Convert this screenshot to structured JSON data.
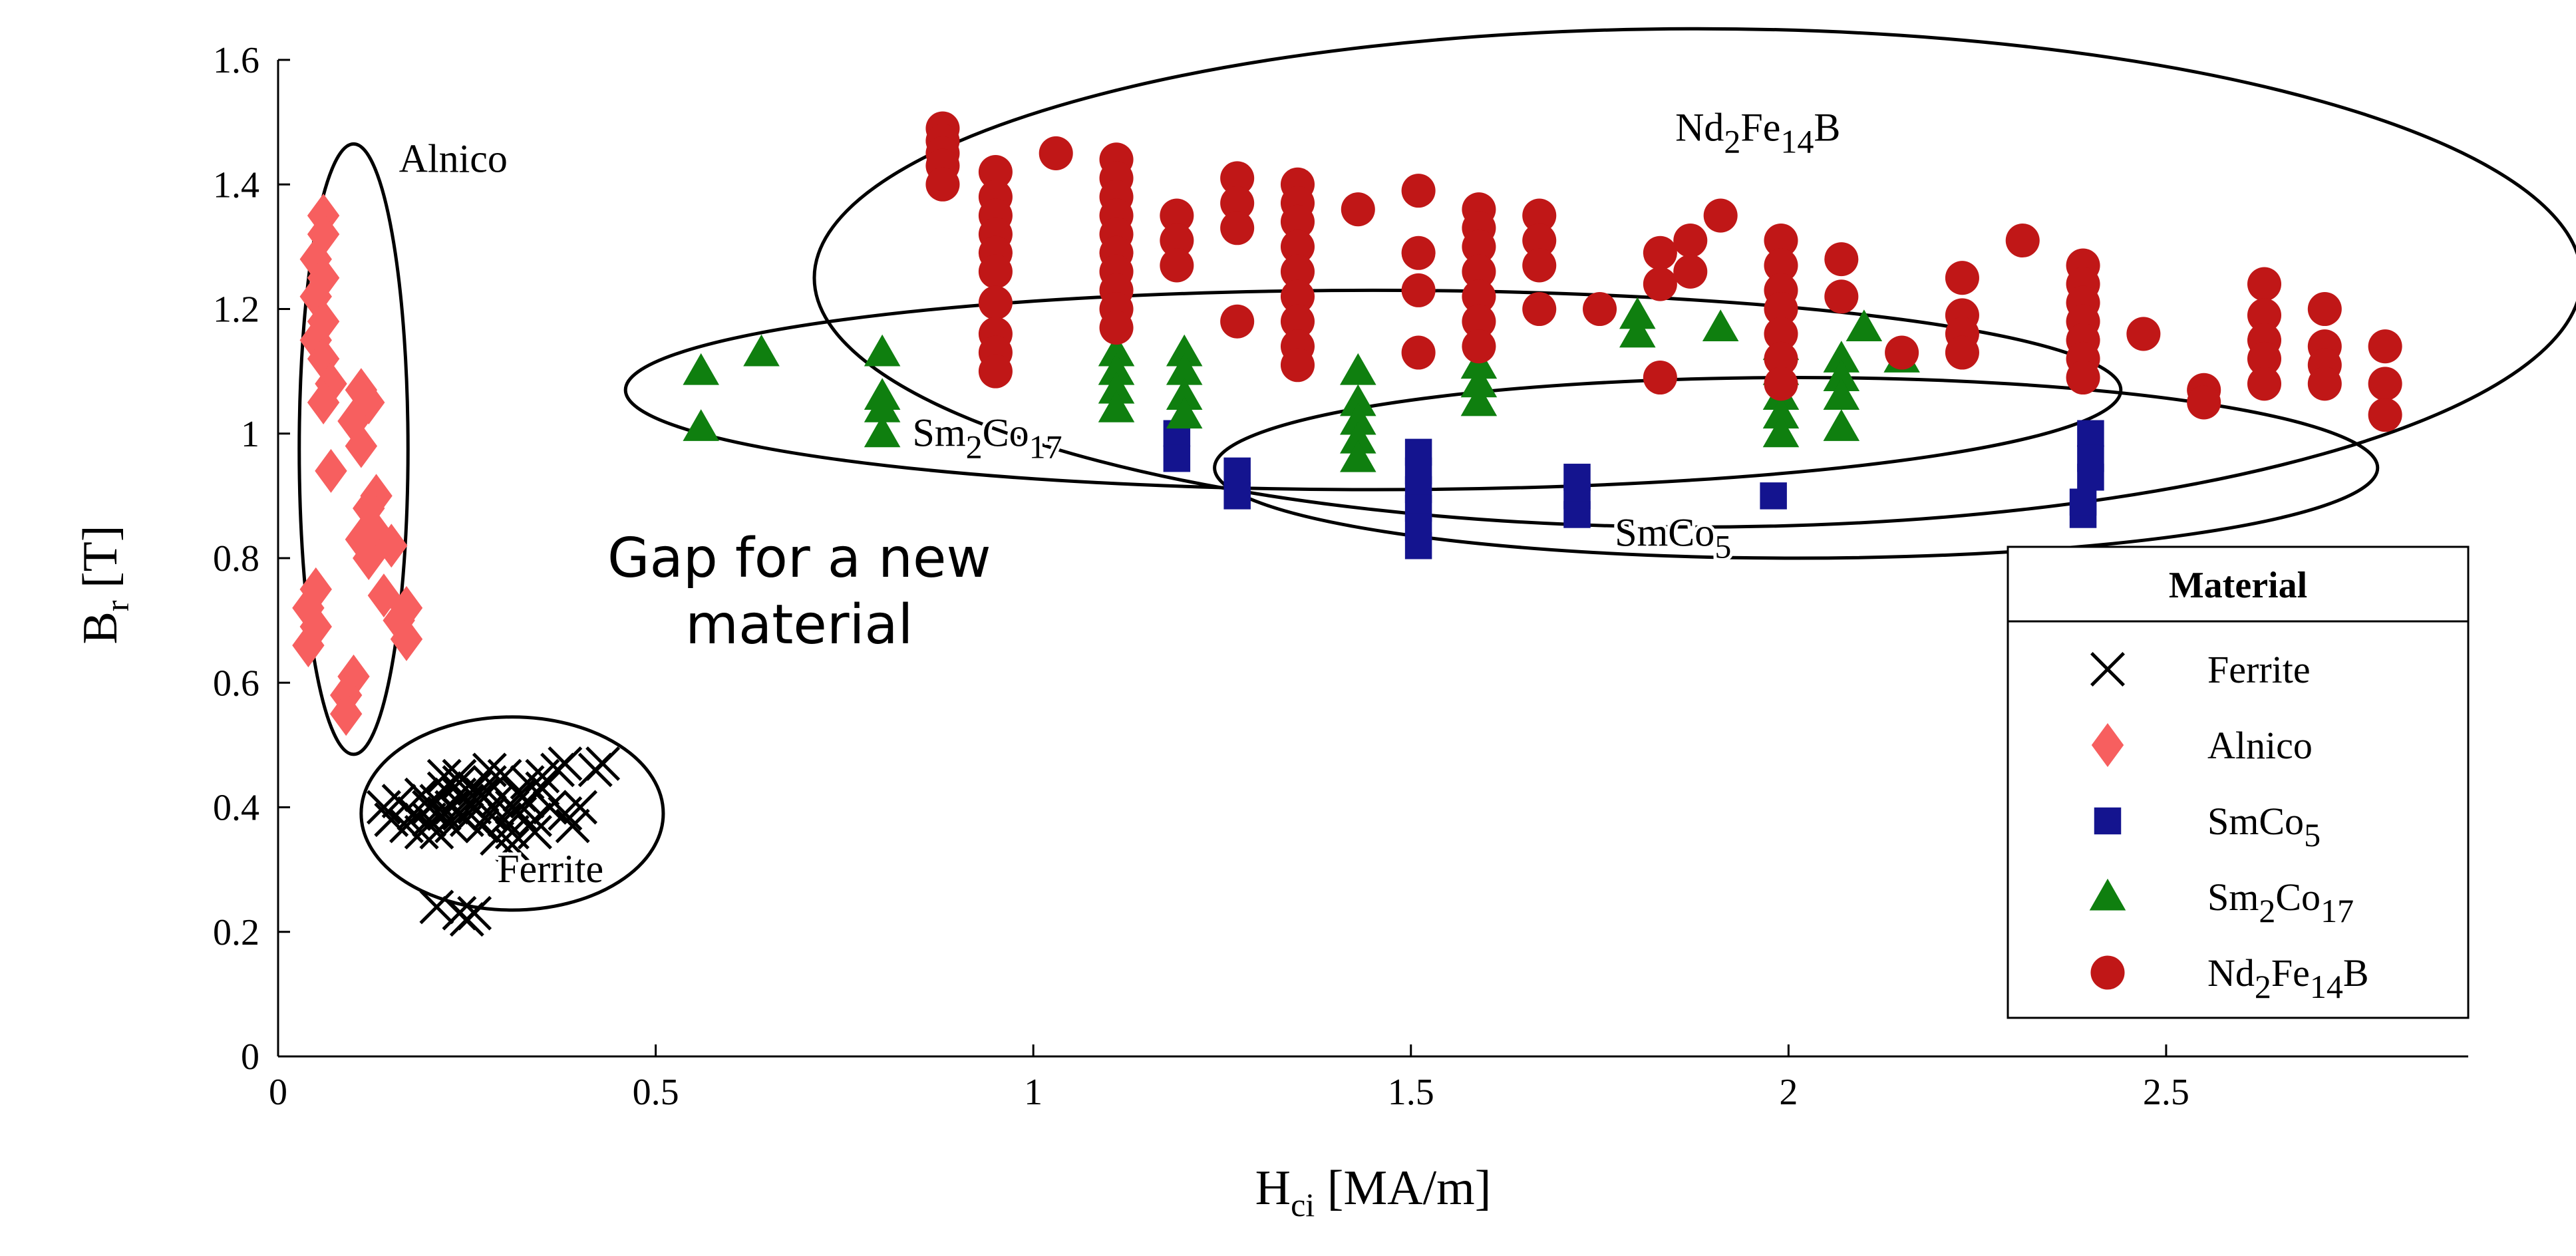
{
  "chart_data": {
    "type": "scatter",
    "title": "",
    "xlabel": {
      "main": "H",
      "sub": "ci",
      "rest": " [MA/m]"
    },
    "ylabel": {
      "main": "B",
      "sub": "r",
      "rest": " [T]"
    },
    "xlim": [
      0,
      2.9
    ],
    "ylim": [
      0,
      1.6
    ],
    "x_ticks": [
      0,
      0.5,
      1,
      1.5,
      2,
      2.5
    ],
    "x_tick_labels": [
      "0",
      "0.5",
      "1",
      "1.5",
      "2",
      "2.5"
    ],
    "y_ticks": [
      0,
      0.2,
      0.4,
      0.6,
      0.8,
      1.0,
      1.2,
      1.4,
      1.6
    ],
    "y_tick_labels": [
      "0",
      "0.2",
      "0.4",
      "0.6",
      "0.8",
      "1",
      "1.2",
      "1.4",
      "1.6"
    ],
    "grid": false,
    "legend": {
      "title": "Material",
      "position": "bottom-right"
    },
    "series": [
      {
        "name": "Ferrite",
        "label_parts": [
          {
            "t": "Ferrite"
          }
        ],
        "marker": "x",
        "color": "#000000",
        "points": [
          [
            0.14,
            0.4
          ],
          [
            0.15,
            0.38
          ],
          [
            0.16,
            0.41
          ],
          [
            0.17,
            0.37
          ],
          [
            0.18,
            0.39
          ],
          [
            0.19,
            0.42
          ],
          [
            0.2,
            0.38
          ],
          [
            0.2,
            0.4
          ],
          [
            0.21,
            0.36
          ],
          [
            0.21,
            0.41
          ],
          [
            0.22,
            0.39
          ],
          [
            0.22,
            0.43
          ],
          [
            0.23,
            0.4
          ],
          [
            0.23,
            0.37
          ],
          [
            0.24,
            0.42
          ],
          [
            0.24,
            0.39
          ],
          [
            0.24,
            0.44
          ],
          [
            0.25,
            0.38
          ],
          [
            0.25,
            0.41
          ],
          [
            0.26,
            0.4
          ],
          [
            0.26,
            0.43
          ],
          [
            0.27,
            0.37
          ],
          [
            0.27,
            0.42
          ],
          [
            0.28,
            0.39
          ],
          [
            0.28,
            0.44
          ],
          [
            0.29,
            0.41
          ],
          [
            0.3,
            0.38
          ],
          [
            0.3,
            0.45
          ],
          [
            0.31,
            0.36
          ],
          [
            0.31,
            0.4
          ],
          [
            0.32,
            0.42
          ],
          [
            0.32,
            0.39
          ],
          [
            0.33,
            0.41
          ],
          [
            0.33,
            0.44
          ],
          [
            0.34,
            0.38
          ],
          [
            0.35,
            0.43
          ],
          [
            0.36,
            0.4
          ],
          [
            0.37,
            0.46
          ],
          [
            0.38,
            0.39
          ],
          [
            0.38,
            0.47
          ],
          [
            0.39,
            0.37
          ],
          [
            0.4,
            0.4
          ],
          [
            0.42,
            0.46
          ],
          [
            0.43,
            0.47
          ],
          [
            0.21,
            0.24
          ],
          [
            0.24,
            0.23
          ],
          [
            0.25,
            0.22
          ],
          [
            0.26,
            0.23
          ],
          [
            0.29,
            0.35
          ],
          [
            0.31,
            0.34
          ],
          [
            0.24,
            0.45
          ],
          [
            0.28,
            0.46
          ],
          [
            0.22,
            0.45
          ],
          [
            0.35,
            0.45
          ],
          [
            0.34,
            0.36
          ],
          [
            0.19,
            0.36
          ]
        ]
      },
      {
        "name": "Alnico",
        "label_parts": [
          {
            "t": "Alnico"
          }
        ],
        "marker": "diamond",
        "color": "#f75f5f",
        "points": [
          [
            0.06,
            1.35
          ],
          [
            0.06,
            1.32
          ],
          [
            0.05,
            1.28
          ],
          [
            0.06,
            1.25
          ],
          [
            0.05,
            1.22
          ],
          [
            0.06,
            1.18
          ],
          [
            0.05,
            1.15
          ],
          [
            0.06,
            1.12
          ],
          [
            0.07,
            1.08
          ],
          [
            0.06,
            1.05
          ],
          [
            0.11,
            1.07
          ],
          [
            0.12,
            1.05
          ],
          [
            0.1,
            1.02
          ],
          [
            0.11,
            0.98
          ],
          [
            0.07,
            0.94
          ],
          [
            0.13,
            0.9
          ],
          [
            0.12,
            0.88
          ],
          [
            0.13,
            0.84
          ],
          [
            0.11,
            0.83
          ],
          [
            0.15,
            0.82
          ],
          [
            0.12,
            0.8
          ],
          [
            0.05,
            0.75
          ],
          [
            0.04,
            0.72
          ],
          [
            0.05,
            0.69
          ],
          [
            0.04,
            0.66
          ],
          [
            0.14,
            0.74
          ],
          [
            0.17,
            0.72
          ],
          [
            0.16,
            0.7
          ],
          [
            0.17,
            0.67
          ],
          [
            0.1,
            0.61
          ],
          [
            0.09,
            0.58
          ],
          [
            0.09,
            0.55
          ]
        ]
      },
      {
        "name": "SmCo5",
        "label_parts": [
          {
            "t": "SmCo"
          },
          {
            "t": "5",
            "sub": true
          }
        ],
        "marker": "square",
        "color": "#14148f",
        "points": [
          [
            1.19,
            1.0
          ],
          [
            1.19,
            0.96
          ],
          [
            1.27,
            0.94
          ],
          [
            1.27,
            0.9
          ],
          [
            1.51,
            0.97
          ],
          [
            1.51,
            0.94
          ],
          [
            1.51,
            0.91
          ],
          [
            1.51,
            0.88
          ],
          [
            1.51,
            0.85
          ],
          [
            1.51,
            0.82
          ],
          [
            1.72,
            0.93
          ],
          [
            1.72,
            0.9
          ],
          [
            1.72,
            0.87
          ],
          [
            1.98,
            0.9
          ],
          [
            2.39,
            0.87
          ],
          [
            2.39,
            0.89
          ],
          [
            2.4,
            1.0
          ],
          [
            2.4,
            0.96
          ],
          [
            2.4,
            0.93
          ]
        ]
      },
      {
        "name": "Sm2Co17",
        "label_parts": [
          {
            "t": "Sm"
          },
          {
            "t": "2",
            "sub": true
          },
          {
            "t": "Co"
          },
          {
            "t": "17",
            "sub": true
          }
        ],
        "marker": "triangle",
        "color": "#0f7f0f",
        "points": [
          [
            0.56,
            1.1
          ],
          [
            0.56,
            1.01
          ],
          [
            0.64,
            1.13
          ],
          [
            0.8,
            1.13
          ],
          [
            0.8,
            1.06
          ],
          [
            0.8,
            1.04
          ],
          [
            0.8,
            1.0
          ],
          [
            1.11,
            1.13
          ],
          [
            1.11,
            1.1
          ],
          [
            1.11,
            1.07
          ],
          [
            1.11,
            1.04
          ],
          [
            1.2,
            1.13
          ],
          [
            1.2,
            1.1
          ],
          [
            1.2,
            1.06
          ],
          [
            1.2,
            1.03
          ],
          [
            1.43,
            1.1
          ],
          [
            1.43,
            1.05
          ],
          [
            1.43,
            1.02
          ],
          [
            1.43,
            0.99
          ],
          [
            1.43,
            0.96
          ],
          [
            1.59,
            1.11
          ],
          [
            1.59,
            1.08
          ],
          [
            1.59,
            1.05
          ],
          [
            1.8,
            1.19
          ],
          [
            1.8,
            1.16
          ],
          [
            1.91,
            1.17
          ],
          [
            1.99,
            1.14
          ],
          [
            1.99,
            1.1
          ],
          [
            1.99,
            1.06
          ],
          [
            1.99,
            1.03
          ],
          [
            1.99,
            1.0
          ],
          [
            2.07,
            1.12
          ],
          [
            2.07,
            1.09
          ],
          [
            2.07,
            1.06
          ],
          [
            2.07,
            1.01
          ],
          [
            2.1,
            1.17
          ],
          [
            2.15,
            1.12
          ]
        ]
      },
      {
        "name": "Nd2Fe14B",
        "label_parts": [
          {
            "t": "Nd"
          },
          {
            "t": "2",
            "sub": true
          },
          {
            "t": "Fe"
          },
          {
            "t": "14",
            "sub": true
          },
          {
            "t": "B"
          }
        ],
        "marker": "circle",
        "color": "#c01717",
        "points": [
          [
            0.88,
            1.49
          ],
          [
            0.88,
            1.47
          ],
          [
            0.88,
            1.45
          ],
          [
            0.88,
            1.43
          ],
          [
            0.88,
            1.4
          ],
          [
            0.95,
            1.42
          ],
          [
            0.95,
            1.38
          ],
          [
            0.95,
            1.35
          ],
          [
            0.95,
            1.32
          ],
          [
            0.95,
            1.29
          ],
          [
            0.95,
            1.26
          ],
          [
            0.95,
            1.21
          ],
          [
            0.95,
            1.16
          ],
          [
            0.95,
            1.13
          ],
          [
            0.95,
            1.1
          ],
          [
            1.03,
            1.45
          ],
          [
            1.11,
            1.44
          ],
          [
            1.11,
            1.41
          ],
          [
            1.11,
            1.38
          ],
          [
            1.11,
            1.35
          ],
          [
            1.11,
            1.32
          ],
          [
            1.11,
            1.29
          ],
          [
            1.11,
            1.26
          ],
          [
            1.11,
            1.23
          ],
          [
            1.11,
            1.2
          ],
          [
            1.11,
            1.17
          ],
          [
            1.19,
            1.35
          ],
          [
            1.19,
            1.31
          ],
          [
            1.19,
            1.27
          ],
          [
            1.27,
            1.41
          ],
          [
            1.27,
            1.37
          ],
          [
            1.27,
            1.33
          ],
          [
            1.27,
            1.18
          ],
          [
            1.35,
            1.4
          ],
          [
            1.35,
            1.37
          ],
          [
            1.35,
            1.34
          ],
          [
            1.35,
            1.3
          ],
          [
            1.35,
            1.26
          ],
          [
            1.35,
            1.22
          ],
          [
            1.35,
            1.18
          ],
          [
            1.35,
            1.14
          ],
          [
            1.35,
            1.11
          ],
          [
            1.43,
            1.36
          ],
          [
            1.51,
            1.39
          ],
          [
            1.51,
            1.29
          ],
          [
            1.51,
            1.23
          ],
          [
            1.51,
            1.13
          ],
          [
            1.59,
            1.36
          ],
          [
            1.59,
            1.33
          ],
          [
            1.59,
            1.3
          ],
          [
            1.59,
            1.26
          ],
          [
            1.59,
            1.22
          ],
          [
            1.59,
            1.18
          ],
          [
            1.59,
            1.14
          ],
          [
            1.67,
            1.35
          ],
          [
            1.67,
            1.31
          ],
          [
            1.67,
            1.27
          ],
          [
            1.67,
            1.2
          ],
          [
            1.75,
            1.2
          ],
          [
            1.83,
            1.29
          ],
          [
            1.83,
            1.24
          ],
          [
            1.83,
            1.09
          ],
          [
            1.87,
            1.31
          ],
          [
            1.87,
            1.26
          ],
          [
            1.91,
            1.35
          ],
          [
            1.99,
            1.31
          ],
          [
            1.99,
            1.27
          ],
          [
            1.99,
            1.23
          ],
          [
            1.99,
            1.2
          ],
          [
            1.99,
            1.16
          ],
          [
            1.99,
            1.12
          ],
          [
            1.99,
            1.08
          ],
          [
            2.07,
            1.28
          ],
          [
            2.07,
            1.22
          ],
          [
            2.15,
            1.13
          ],
          [
            2.23,
            1.25
          ],
          [
            2.23,
            1.19
          ],
          [
            2.23,
            1.16
          ],
          [
            2.23,
            1.13
          ],
          [
            2.31,
            1.31
          ],
          [
            2.39,
            1.27
          ],
          [
            2.39,
            1.24
          ],
          [
            2.39,
            1.21
          ],
          [
            2.39,
            1.18
          ],
          [
            2.39,
            1.15
          ],
          [
            2.39,
            1.12
          ],
          [
            2.39,
            1.09
          ],
          [
            2.47,
            1.16
          ],
          [
            2.55,
            1.07
          ],
          [
            2.55,
            1.05
          ],
          [
            2.63,
            1.24
          ],
          [
            2.63,
            1.19
          ],
          [
            2.63,
            1.15
          ],
          [
            2.63,
            1.12
          ],
          [
            2.63,
            1.08
          ],
          [
            2.71,
            1.2
          ],
          [
            2.71,
            1.14
          ],
          [
            2.71,
            1.11
          ],
          [
            2.71,
            1.08
          ],
          [
            2.79,
            1.14
          ],
          [
            2.79,
            1.08
          ],
          [
            2.79,
            1.03
          ]
        ]
      }
    ],
    "regions": [
      {
        "name": "Alnico",
        "label_parts": [
          {
            "t": "Alnico"
          }
        ],
        "cx": 0.1,
        "cy": 0.975,
        "rx": 0.072,
        "ry": 0.49,
        "label_at": [
          0.16,
          1.42
        ]
      },
      {
        "name": "Ferrite",
        "label_parts": [
          {
            "t": "Ferrite"
          }
        ],
        "cx": 0.31,
        "cy": 0.39,
        "rx": 0.2,
        "ry": 0.155,
        "label_at": [
          0.29,
          0.28
        ]
      },
      {
        "name": "Nd2Fe14B",
        "label_parts": [
          {
            "t": "Nd"
          },
          {
            "t": "2",
            "sub": true
          },
          {
            "t": "Fe"
          },
          {
            "t": "14",
            "sub": true
          },
          {
            "t": "B"
          }
        ],
        "cx": 1.88,
        "cy": 1.25,
        "rx": 1.17,
        "ry": 0.4,
        "label_at": [
          1.85,
          1.47
        ]
      },
      {
        "name": "Sm2Co17",
        "label_parts": [
          {
            "t": "Sm"
          },
          {
            "t": "2",
            "sub": true
          },
          {
            "t": "Co"
          },
          {
            "t": "17",
            "sub": true
          }
        ],
        "cx": 1.45,
        "cy": 1.07,
        "rx": 0.99,
        "ry": 0.16,
        "label_at": [
          0.84,
          0.98
        ]
      },
      {
        "name": "SmCo5",
        "label_parts": [
          {
            "t": "SmCo"
          },
          {
            "t": "5",
            "sub": true
          }
        ],
        "cx": 2.01,
        "cy": 0.945,
        "rx": 0.77,
        "ry": 0.145,
        "label_at": [
          1.77,
          0.82
        ]
      }
    ],
    "annotations": [
      {
        "lines": [
          "Gap for a new",
          "material"
        ],
        "at": [
          0.69,
          0.77
        ]
      }
    ]
  }
}
